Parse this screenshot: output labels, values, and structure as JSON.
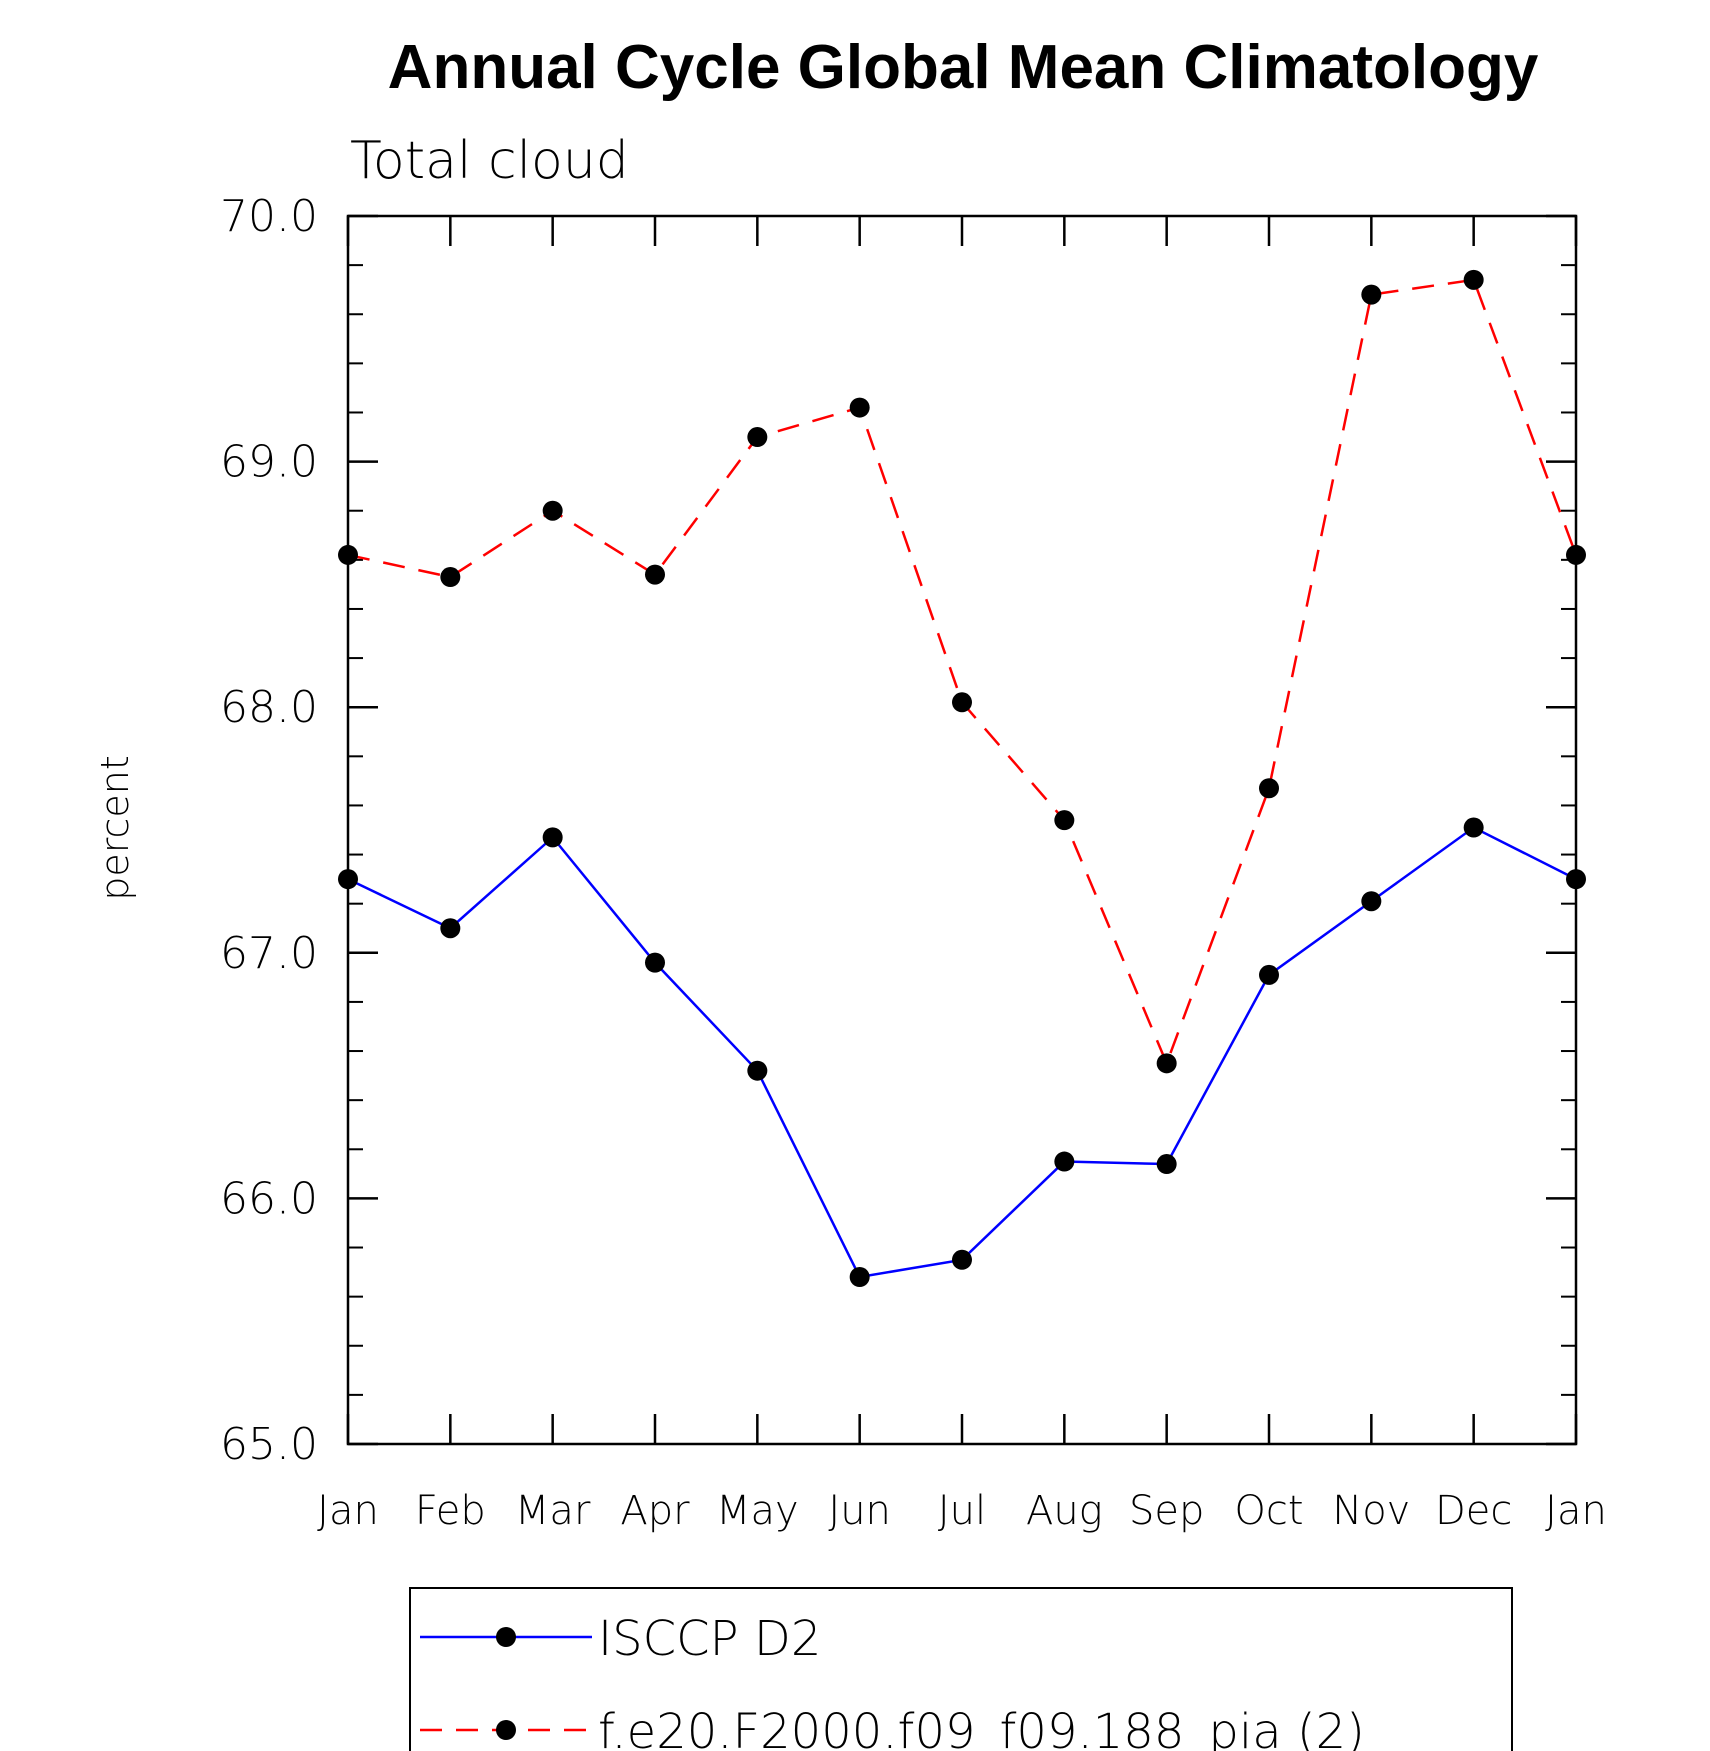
{
  "chart_data": {
    "type": "line",
    "title": "Annual Cycle Global Mean Climatology",
    "subtitle": "Total cloud",
    "xlabel": "",
    "ylabel": "percent",
    "ylim": [
      65.0,
      70.0
    ],
    "y_major_ticks": [
      "65.0",
      "66.0",
      "67.0",
      "68.0",
      "69.0",
      "70.0"
    ],
    "y_minor_step": 0.2,
    "categories": [
      "Jan",
      "Feb",
      "Mar",
      "Apr",
      "May",
      "Jun",
      "Jul",
      "Aug",
      "Sep",
      "Oct",
      "Nov",
      "Dec",
      "Jan"
    ],
    "series": [
      {
        "name": "ISCCP D2",
        "color": "#0000ff",
        "dash": "solid",
        "marker": "filled-circle",
        "values": [
          67.3,
          67.1,
          67.47,
          66.96,
          66.52,
          65.68,
          65.75,
          66.15,
          66.14,
          66.91,
          67.21,
          67.51,
          67.3
        ]
      },
      {
        "name": "f.e20.F2000.f09_f09.188_pia (2)",
        "color": "#ff0000",
        "dash": "dashed",
        "marker": "filled-circle",
        "values": [
          68.62,
          68.53,
          68.8,
          68.54,
          69.1,
          69.22,
          68.02,
          67.54,
          66.55,
          67.67,
          69.68,
          69.74,
          68.62
        ]
      }
    ],
    "legend_position": "bottom-center",
    "grid": false
  }
}
